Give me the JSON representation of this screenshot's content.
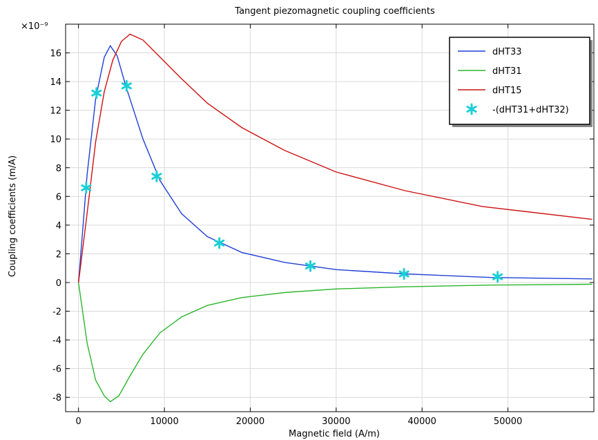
{
  "chart_data": {
    "type": "line",
    "title": "Tangent piezomagnetic coupling coefficients",
    "xlabel": "Magnetic field (A/m)",
    "ylabel": "Coupling coefficients (m/A)",
    "y_multiplier_label": "×10⁻⁹",
    "xlim": [
      -1500,
      60000
    ],
    "ylim": [
      -9,
      18
    ],
    "x_ticks": [
      0,
      10000,
      20000,
      30000,
      40000,
      50000
    ],
    "x_tick_labels": [
      "0",
      "10000",
      "20000",
      "30000",
      "40000",
      "50000"
    ],
    "y_ticks": [
      -8,
      -6,
      -4,
      -2,
      0,
      2,
      4,
      6,
      8,
      10,
      12,
      14,
      16
    ],
    "y_tick_labels": [
      "-8",
      "-6",
      "-4",
      "-2",
      "0",
      "2",
      "4",
      "6",
      "8",
      "10",
      "12",
      "14",
      "16"
    ],
    "grid": true,
    "legend_position": "top-right",
    "series": [
      {
        "name": "dHT33",
        "color": "#1f3fd6",
        "marker": "none",
        "x": [
          0,
          1000,
          2000,
          3000,
          3700,
          4500,
          5500,
          7500,
          9500,
          12000,
          15000,
          19000,
          24000,
          30000,
          38000,
          48000,
          59800
        ],
        "y": [
          0,
          7.5,
          12.8,
          15.7,
          16.5,
          15.8,
          13.7,
          10.0,
          7.1,
          4.8,
          3.2,
          2.1,
          1.4,
          0.9,
          0.6,
          0.35,
          0.25
        ]
      },
      {
        "name": "dHT31",
        "color": "#2ab52a",
        "marker": "none",
        "x": [
          0,
          1000,
          2000,
          3000,
          3700,
          4700,
          6000,
          7500,
          9500,
          12000,
          15000,
          19000,
          24000,
          30000,
          38000,
          48000,
          59800
        ],
        "y": [
          0,
          -4.2,
          -6.8,
          -7.9,
          -8.3,
          -7.9,
          -6.5,
          -5.0,
          -3.5,
          -2.4,
          -1.6,
          -1.05,
          -0.7,
          -0.45,
          -0.3,
          -0.18,
          -0.12
        ]
      },
      {
        "name": "dHT15",
        "color": "#cc1111",
        "marker": "none",
        "x": [
          0,
          1000,
          2000,
          3000,
          4000,
          5000,
          6000,
          7500,
          9500,
          12000,
          15000,
          19000,
          24000,
          30000,
          38000,
          47000,
          59800
        ],
        "y": [
          0,
          4.8,
          9.8,
          13.3,
          15.5,
          16.8,
          17.3,
          16.9,
          15.7,
          14.2,
          12.5,
          10.8,
          9.2,
          7.7,
          6.4,
          5.3,
          4.4
        ]
      },
      {
        "name": "-(dHT31+dHT32)",
        "color": "#1ccfd6",
        "marker": "asterisk",
        "x": [
          900,
          2100,
          5600,
          9100,
          16400,
          27000,
          37900,
          48800
        ],
        "y": [
          6.6,
          13.2,
          13.7,
          7.4,
          2.75,
          1.15,
          0.6,
          0.4
        ]
      }
    ]
  }
}
